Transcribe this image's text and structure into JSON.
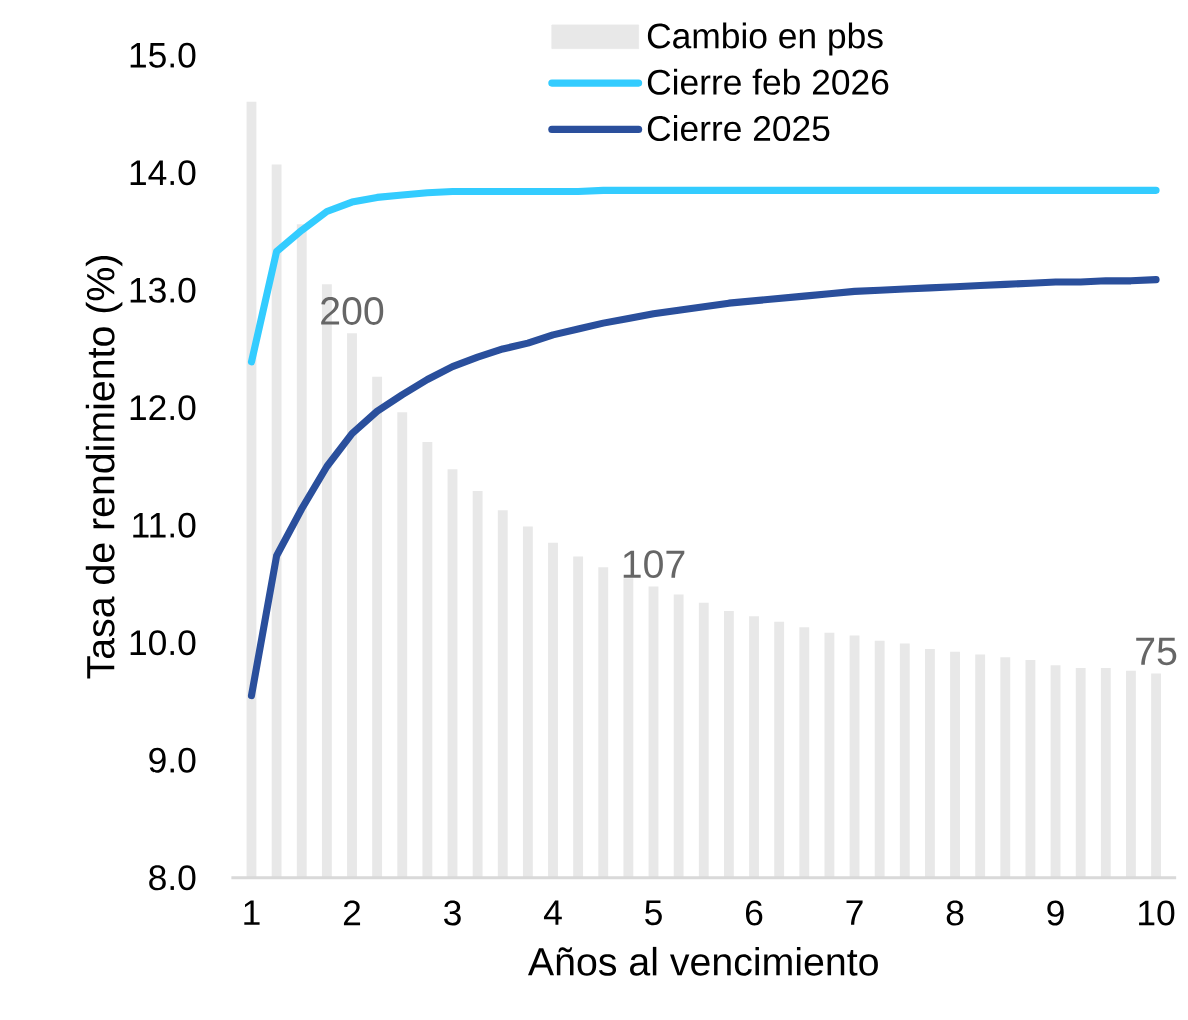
{
  "chart_data": {
    "type": "line",
    "xlabel": "Años al vencimiento",
    "ylabel": "Tasa de rendimiento (%)",
    "x": [
      1,
      1.25,
      1.5,
      1.75,
      2,
      2.25,
      2.5,
      2.75,
      3,
      3.25,
      3.5,
      3.75,
      4,
      4.25,
      4.5,
      4.75,
      5,
      5.25,
      5.5,
      5.75,
      6,
      6.25,
      6.5,
      6.75,
      7,
      7.25,
      7.5,
      7.75,
      8,
      8.25,
      8.5,
      8.75,
      9,
      9.25,
      9.5,
      9.75,
      10
    ],
    "xlim": [
      0.8,
      10.2
    ],
    "xticks": [
      1,
      2,
      3,
      4,
      5,
      6,
      7,
      8,
      9,
      10
    ],
    "ylim": [
      8,
      15
    ],
    "yticks": [
      {
        "value": 8,
        "label": "8.0"
      },
      {
        "value": 9,
        "label": "9.0"
      },
      {
        "value": 10,
        "label": "10.0"
      },
      {
        "value": 11,
        "label": "11.0"
      },
      {
        "value": 12,
        "label": "12.0"
      },
      {
        "value": 13,
        "label": "13.0"
      },
      {
        "value": 14,
        "label": "14.0"
      },
      {
        "value": 15,
        "label": "15.0"
      }
    ],
    "legend": "top",
    "series": [
      {
        "name": "Cambio en pbs",
        "type": "bar",
        "axis": "y2",
        "color": "#e8e8e8",
        "values": [
          285,
          262,
          240,
          218,
          200,
          184,
          171,
          160,
          150,
          142,
          135,
          129,
          123,
          118,
          114,
          110,
          107,
          104,
          101,
          98,
          96,
          94,
          92,
          90,
          89,
          87,
          86,
          84,
          83,
          82,
          81,
          80,
          78,
          77,
          77,
          76,
          75
        ],
        "value_labels": [
          null,
          null,
          null,
          null,
          "200",
          null,
          null,
          null,
          null,
          null,
          null,
          null,
          null,
          null,
          null,
          null,
          "107",
          null,
          null,
          null,
          null,
          null,
          null,
          null,
          null,
          null,
          null,
          null,
          null,
          null,
          null,
          null,
          null,
          null,
          null,
          null,
          "75"
        ]
      },
      {
        "name": "Cierre feb 2026",
        "color": "#33ccff",
        "values": [
          12.39,
          13.33,
          13.51,
          13.67,
          13.75,
          13.79,
          13.81,
          13.83,
          13.84,
          13.84,
          13.84,
          13.84,
          13.84,
          13.84,
          13.85,
          13.85,
          13.85,
          13.85,
          13.85,
          13.85,
          13.85,
          13.85,
          13.85,
          13.85,
          13.85,
          13.85,
          13.85,
          13.85,
          13.85,
          13.85,
          13.85,
          13.85,
          13.85,
          13.85,
          13.85,
          13.85,
          13.85
        ]
      },
      {
        "name": "Cierre 2025",
        "color": "#2a4f9c",
        "values": [
          9.55,
          10.74,
          11.14,
          11.5,
          11.78,
          11.97,
          12.11,
          12.24,
          12.35,
          12.43,
          12.5,
          12.55,
          12.62,
          12.67,
          12.72,
          12.76,
          12.8,
          12.83,
          12.86,
          12.89,
          12.91,
          12.93,
          12.95,
          12.97,
          12.99,
          13.0,
          13.01,
          13.02,
          13.03,
          13.04,
          13.05,
          13.06,
          13.07,
          13.07,
          13.08,
          13.08,
          13.09
        ]
      }
    ]
  }
}
